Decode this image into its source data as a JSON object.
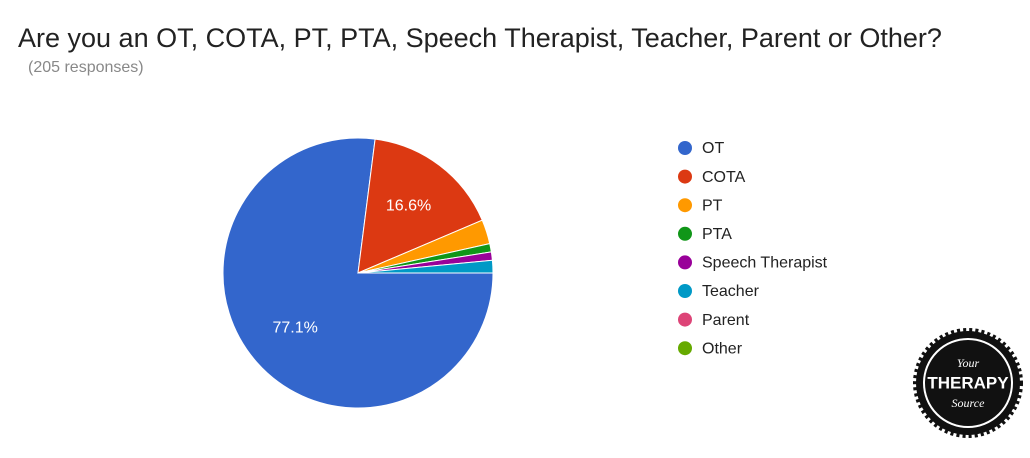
{
  "chart_data": {
    "type": "pie",
    "title": "Are you an OT, COTA, PT, PTA, Speech Therapist, Teacher, Parent or Other?",
    "subtitle": "(205 responses)",
    "categories": [
      "OT",
      "COTA",
      "PT",
      "PTA",
      "Speech Therapist",
      "Teacher",
      "Parent",
      "Other"
    ],
    "values": [
      77.1,
      16.6,
      2.9,
      1.0,
      1.0,
      1.5,
      0,
      0
    ],
    "value_labels": [
      "77.1%",
      "16.6%",
      null,
      null,
      null,
      null,
      null,
      null
    ],
    "colors": [
      "#3366cc",
      "#dc3912",
      "#ff9900",
      "#109618",
      "#990099",
      "#0099c6",
      "#dd4477",
      "#66aa00"
    ],
    "legend": "right"
  },
  "logo": {
    "top": "Your",
    "middle": "THERAPY",
    "bottom": "Source"
  }
}
